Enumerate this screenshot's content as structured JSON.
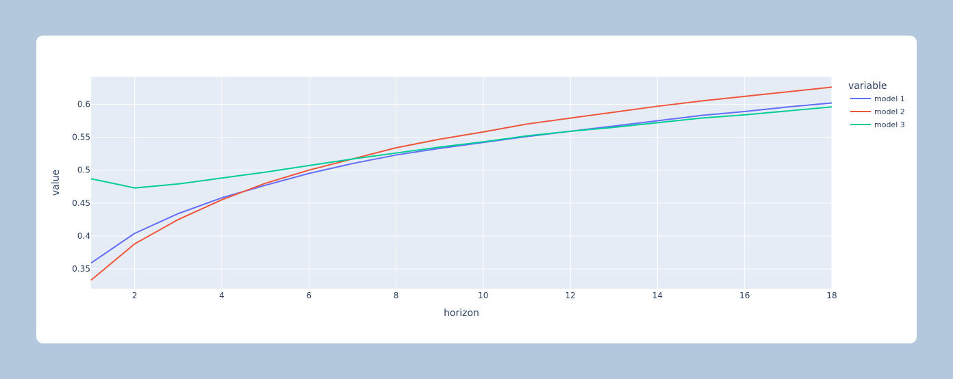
{
  "chart_data": {
    "type": "line",
    "xlabel": "horizon",
    "ylabel": "value",
    "xlim": [
      1,
      18
    ],
    "ylim": [
      0.32,
      0.642
    ],
    "xticks": [
      2,
      4,
      6,
      8,
      10,
      12,
      14,
      16,
      18
    ],
    "yticks": [
      0.35,
      0.4,
      0.45,
      0.5,
      0.55,
      0.6
    ],
    "ytick_labels": [
      "0.35",
      "0.4",
      "0.45",
      "0.5",
      "0.55",
      "0.6"
    ],
    "grid": true,
    "legend": {
      "title": "variable",
      "position": "right"
    },
    "x": [
      1,
      2,
      3,
      4,
      5,
      6,
      7,
      8,
      9,
      10,
      11,
      12,
      13,
      14,
      15,
      16,
      17,
      18
    ],
    "series": [
      {
        "name": "model 1",
        "color": "#636efa",
        "values": [
          0.359,
          0.404,
          0.434,
          0.458,
          0.477,
          0.495,
          0.51,
          0.523,
          0.533,
          0.542,
          0.551,
          0.559,
          0.567,
          0.575,
          0.583,
          0.589,
          0.596,
          0.602
        ]
      },
      {
        "name": "model 2",
        "color": "#ef553b",
        "values": [
          0.333,
          0.388,
          0.425,
          0.455,
          0.48,
          0.5,
          0.517,
          0.534,
          0.547,
          0.558,
          0.57,
          0.579,
          0.588,
          0.597,
          0.605,
          0.612,
          0.619,
          0.626
        ]
      },
      {
        "name": "model 3",
        "color": "#00cc96",
        "values": [
          0.487,
          0.473,
          0.479,
          0.488,
          0.497,
          0.507,
          0.517,
          0.526,
          0.535,
          0.543,
          0.552,
          0.559,
          0.565,
          0.572,
          0.579,
          0.584,
          0.59,
          0.596
        ]
      }
    ]
  }
}
